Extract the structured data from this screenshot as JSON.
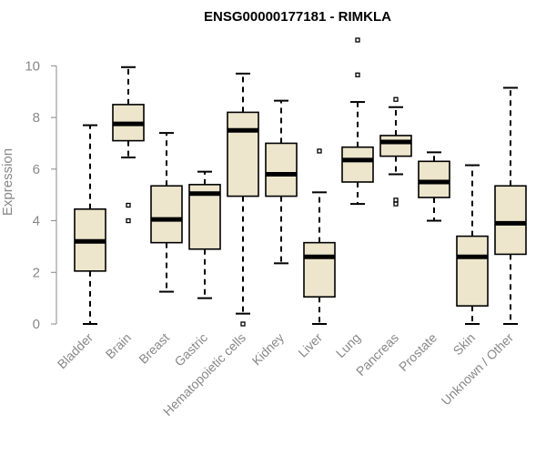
{
  "chart_data": {
    "type": "box",
    "title": "ENSG00000177181 - RIMKLA",
    "ylabel": "Expression",
    "ylim": [
      0,
      11
    ],
    "yticks": [
      0,
      2,
      4,
      6,
      8,
      10
    ],
    "box_fill": "#ede6cd",
    "grid": false,
    "categories": [
      "Bladder",
      "Brain",
      "Breast",
      "Gastric",
      "Hematopoietic cells",
      "Kidney",
      "Liver",
      "Lung",
      "Pancreas",
      "Prostate",
      "Skin",
      "Unknown / Other"
    ],
    "boxes": [
      {
        "min": 0.0,
        "q1": 2.05,
        "median": 3.2,
        "q3": 4.45,
        "max": 7.7,
        "outliers": []
      },
      {
        "min": 6.45,
        "q1": 7.1,
        "median": 7.75,
        "q3": 8.5,
        "max": 9.95,
        "outliers": [
          4.6,
          4.0
        ]
      },
      {
        "min": 1.25,
        "q1": 3.15,
        "median": 4.05,
        "q3": 5.35,
        "max": 7.4,
        "outliers": []
      },
      {
        "min": 1.0,
        "q1": 2.9,
        "median": 5.05,
        "q3": 5.4,
        "max": 5.9,
        "outliers": []
      },
      {
        "min": 0.4,
        "q1": 4.95,
        "median": 7.5,
        "q3": 8.2,
        "max": 9.7,
        "outliers": [
          0.0
        ]
      },
      {
        "min": 2.35,
        "q1": 4.95,
        "median": 5.8,
        "q3": 7.0,
        "max": 8.65,
        "outliers": []
      },
      {
        "min": 0.0,
        "q1": 1.05,
        "median": 2.6,
        "q3": 3.15,
        "max": 5.1,
        "outliers": [
          6.7
        ]
      },
      {
        "min": 4.65,
        "q1": 5.5,
        "median": 6.35,
        "q3": 6.85,
        "max": 8.6,
        "outliers": [
          11.0,
          9.65
        ]
      },
      {
        "min": 5.8,
        "q1": 6.5,
        "median": 7.05,
        "q3": 7.3,
        "max": 8.4,
        "outliers": [
          8.7,
          4.8,
          4.65
        ]
      },
      {
        "min": 4.0,
        "q1": 4.9,
        "median": 5.5,
        "q3": 6.3,
        "max": 6.65,
        "outliers": []
      },
      {
        "min": 0.0,
        "q1": 0.7,
        "median": 2.6,
        "q3": 3.4,
        "max": 6.15,
        "outliers": []
      },
      {
        "min": 0.0,
        "q1": 2.7,
        "median": 3.9,
        "q3": 5.35,
        "max": 9.15,
        "outliers": []
      }
    ]
  }
}
